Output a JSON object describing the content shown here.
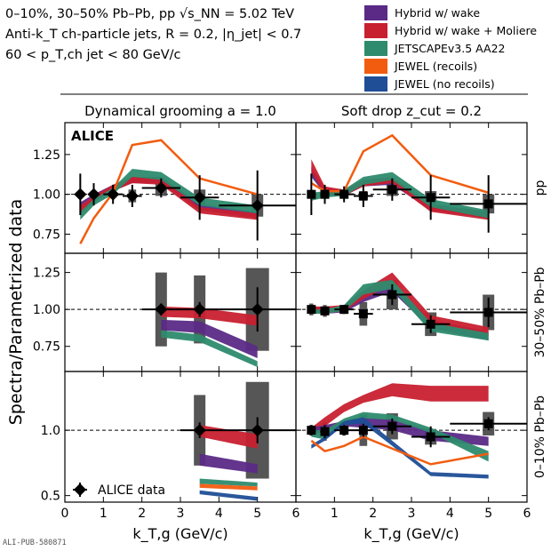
{
  "header": {
    "line1": "0–10%, 30–50% Pb–Pb, pp √s_NN = 5.02 TeV",
    "line2": "Anti-k_T ch-particle jets, R = 0.2, |η_jet| < 0.7",
    "line3": "60 < p_T,ch jet < 80 GeV/c"
  },
  "footer": {
    "pub_id": "ALI-PUB-580871"
  },
  "colors": {
    "hybrid_wake": "#5b2a86",
    "hybrid_moliere": "#c8202f",
    "jetscape": "#2e8b6e",
    "jewel_recoils": "#f25c0f",
    "jewel_norecoils": "#1f4e96",
    "data": "#000000",
    "syst_box": "#444444"
  },
  "chart_data": {
    "type": "line",
    "xlabel": "k_T,g (GeV/c)",
    "ylabel": "Spectra/Parametrized data",
    "xlim": [
      0,
      6
    ],
    "xticks": [
      0,
      1,
      2,
      3,
      4,
      5,
      6
    ],
    "columns": [
      {
        "id": "dyg",
        "title": "Dynamical grooming a = 1.0"
      },
      {
        "id": "sd",
        "title": "Soft drop z_cut = 0.2"
      }
    ],
    "rows": [
      {
        "id": "pp",
        "label": "pp",
        "ylim": [
          0.63,
          1.45
        ],
        "yticks": [
          0.75,
          1.0,
          1.25
        ],
        "ytick_labels": [
          "0.75",
          "1.00",
          "1.25"
        ]
      },
      {
        "id": "pb3050",
        "label": "30–50% Pb–Pb",
        "ylim": [
          0.58,
          1.38
        ],
        "yticks": [
          0.75,
          1.0,
          1.25
        ],
        "ytick_labels": [
          "0.75",
          "1.00",
          "1.25"
        ]
      },
      {
        "id": "pb010",
        "label": "0–10% Pb–Pb",
        "ylim": [
          0.45,
          1.45
        ],
        "yticks": [
          0.5,
          1.0
        ],
        "ytick_labels": [
          "0.5",
          "1.0"
        ]
      }
    ],
    "reference_line": 1.0,
    "legend": [
      {
        "key": "hybrid_wake",
        "label": "Hybrid w/ wake"
      },
      {
        "key": "hybrid_moliere",
        "label": "Hybrid w/ wake + Moliere"
      },
      {
        "key": "jetscape",
        "label": "JETSCAPEv3.5 AA22"
      },
      {
        "key": "jewel_recoils",
        "label": "JEWEL (recoils)"
      },
      {
        "key": "jewel_norecoils",
        "label": "JEWEL (no recoils)"
      }
    ],
    "data_legend": "ALICE data",
    "experiment_label": "ALICE",
    "panels": [
      {
        "row": "pp",
        "col": "dyg",
        "data": [
          {
            "x": 0.4,
            "y": 1.0,
            "xerr": 0.1,
            "stat": 0.13,
            "sys": 0.02,
            "sw": 0.1
          },
          {
            "x": 0.75,
            "y": 1.0,
            "xerr": 0.12,
            "stat": 0.07,
            "sys": 0.02,
            "sw": 0.1
          },
          {
            "x": 1.25,
            "y": 1.0,
            "xerr": 0.25,
            "stat": 0.06,
            "sys": 0.02,
            "sw": 0.1
          },
          {
            "x": 1.75,
            "y": 0.99,
            "xerr": 0.25,
            "stat": 0.07,
            "sys": 0.04,
            "sw": 0.2
          },
          {
            "x": 2.5,
            "y": 1.04,
            "xerr": 0.5,
            "stat": 0.06,
            "sys": 0.05,
            "sw": 0.3
          },
          {
            "x": 3.5,
            "y": 0.98,
            "xerr": 0.5,
            "stat": 0.14,
            "sys": 0.05,
            "sw": 0.3
          },
          {
            "x": 5.0,
            "y": 0.93,
            "xerr": 1.0,
            "stat": 0.22,
            "sys": 0.07,
            "sw": 0.3
          }
        ],
        "bands": [
          {
            "key": "hybrid_wake",
            "x": [
              0.4,
              0.75,
              1.25,
              1.75,
              2.5,
              3.5,
              5.0
            ],
            "lo": [
              0.9,
              0.96,
              1.02,
              1.07,
              1.07,
              0.9,
              0.85
            ],
            "hi": [
              0.95,
              1.0,
              1.06,
              1.11,
              1.11,
              0.94,
              0.89
            ]
          },
          {
            "key": "hybrid_moliere",
            "x": [
              0.4,
              0.75,
              1.25,
              1.75,
              2.5,
              3.5,
              5.0
            ],
            "lo": [
              0.88,
              0.95,
              1.02,
              1.07,
              1.06,
              0.88,
              0.84
            ],
            "hi": [
              0.93,
              0.99,
              1.06,
              1.11,
              1.1,
              0.92,
              0.88
            ]
          },
          {
            "key": "jetscape",
            "x": [
              0.4,
              0.75,
              1.25,
              1.75,
              2.5,
              3.5,
              5.0
            ],
            "lo": [
              0.84,
              0.93,
              1.0,
              1.11,
              1.09,
              0.93,
              0.88
            ],
            "hi": [
              0.89,
              0.97,
              1.04,
              1.16,
              1.14,
              0.98,
              0.93
            ]
          }
        ],
        "lines": [
          {
            "key": "jewel_recoils",
            "x": [
              0.4,
              0.75,
              1.25,
              1.75,
              2.5,
              3.5,
              5.0
            ],
            "y": [
              0.69,
              0.85,
              1.01,
              1.31,
              1.34,
              1.1,
              1.0
            ]
          }
        ]
      },
      {
        "row": "pp",
        "col": "sd",
        "data": [
          {
            "x": 0.4,
            "y": 1.0,
            "xerr": 0.1,
            "stat": 0.13,
            "sys": 0.02,
            "sw": 0.1
          },
          {
            "x": 0.75,
            "y": 1.0,
            "xerr": 0.12,
            "stat": 0.06,
            "sys": 0.02,
            "sw": 0.1
          },
          {
            "x": 1.25,
            "y": 1.0,
            "xerr": 0.25,
            "stat": 0.05,
            "sys": 0.02,
            "sw": 0.1
          },
          {
            "x": 1.75,
            "y": 0.99,
            "xerr": 0.25,
            "stat": 0.07,
            "sys": 0.03,
            "sw": 0.2
          },
          {
            "x": 2.5,
            "y": 1.03,
            "xerr": 0.5,
            "stat": 0.07,
            "sys": 0.04,
            "sw": 0.3
          },
          {
            "x": 3.5,
            "y": 0.98,
            "xerr": 0.5,
            "stat": 0.14,
            "sys": 0.04,
            "sw": 0.3
          },
          {
            "x": 5.0,
            "y": 0.94,
            "xerr": 1.0,
            "stat": 0.18,
            "sys": 0.06,
            "sw": 0.3
          }
        ],
        "bands": [
          {
            "key": "hybrid_wake",
            "x": [
              0.4,
              0.75,
              1.25,
              1.75,
              2.5,
              3.5,
              5.0
            ],
            "lo": [
              1.11,
              1.0,
              0.99,
              1.05,
              1.06,
              0.9,
              0.85
            ],
            "hi": [
              1.17,
              1.04,
              1.03,
              1.09,
              1.1,
              0.94,
              0.89
            ]
          },
          {
            "key": "hybrid_moliere",
            "x": [
              0.4,
              0.75,
              1.25,
              1.75,
              2.5,
              3.5,
              5.0
            ],
            "lo": [
              1.14,
              1.0,
              0.99,
              1.05,
              1.07,
              0.89,
              0.84
            ],
            "hi": [
              1.22,
              1.05,
              1.03,
              1.09,
              1.11,
              0.93,
              0.88
            ]
          },
          {
            "key": "jetscape",
            "x": [
              0.4,
              0.75,
              1.25,
              1.75,
              2.5,
              3.5,
              5.0
            ],
            "lo": [
              0.96,
              0.98,
              0.99,
              1.06,
              1.09,
              0.92,
              0.85
            ],
            "hi": [
              1.01,
              1.02,
              1.03,
              1.11,
              1.14,
              0.97,
              0.9
            ]
          }
        ],
        "lines": [
          {
            "key": "jewel_recoils",
            "x": [
              0.4,
              0.75,
              1.25,
              1.75,
              2.5,
              3.5,
              5.0
            ],
            "y": [
              1.07,
              1.02,
              1.02,
              1.27,
              1.37,
              1.12,
              1.01
            ]
          }
        ]
      },
      {
        "row": "pb3050",
        "col": "dyg",
        "data": [
          {
            "x": 2.5,
            "y": 1.0,
            "xerr": 0.5,
            "stat": 0.04,
            "sys": 0.25,
            "sw": 0.3
          },
          {
            "x": 3.5,
            "y": 1.0,
            "xerr": 0.5,
            "stat": 0.05,
            "sys": 0.23,
            "sw": 0.3
          },
          {
            "x": 5.0,
            "y": 1.0,
            "xerr": 1.0,
            "stat": 0.15,
            "sys": 0.28,
            "sw": 0.6
          }
        ],
        "bands": [
          {
            "key": "hybrid_wake",
            "x": [
              2.5,
              3.5,
              5.0
            ],
            "lo": [
              0.86,
              0.84,
              0.67
            ],
            "hi": [
              0.93,
              0.92,
              0.75
            ]
          },
          {
            "key": "hybrid_moliere",
            "x": [
              2.5,
              3.5,
              5.0
            ],
            "lo": [
              0.95,
              0.94,
              0.89
            ],
            "hi": [
              1.02,
              1.01,
              0.96
            ]
          },
          {
            "key": "jetscape",
            "x": [
              2.5,
              3.5,
              5.0
            ],
            "lo": [
              0.81,
              0.78,
              0.61
            ],
            "hi": [
              0.86,
              0.83,
              0.65
            ]
          }
        ],
        "lines": []
      },
      {
        "row": "pb3050",
        "col": "sd",
        "data": [
          {
            "x": 0.4,
            "y": 1.0,
            "xerr": 0.1,
            "stat": 0.03,
            "sys": 0.04,
            "sw": 0.1
          },
          {
            "x": 0.75,
            "y": 0.99,
            "xerr": 0.12,
            "stat": 0.03,
            "sys": 0.04,
            "sw": 0.1
          },
          {
            "x": 1.25,
            "y": 1.0,
            "xerr": 0.25,
            "stat": 0.03,
            "sys": 0.03,
            "sw": 0.1
          },
          {
            "x": 1.75,
            "y": 0.97,
            "xerr": 0.25,
            "stat": 0.03,
            "sys": 0.08,
            "sw": 0.2
          },
          {
            "x": 2.5,
            "y": 1.1,
            "xerr": 0.5,
            "stat": 0.07,
            "sys": 0.1,
            "sw": 0.3
          },
          {
            "x": 3.5,
            "y": 0.9,
            "xerr": 0.5,
            "stat": 0.06,
            "sys": 0.08,
            "sw": 0.3
          },
          {
            "x": 5.0,
            "y": 0.98,
            "xerr": 1.0,
            "stat": 0.1,
            "sys": 0.12,
            "sw": 0.3
          }
        ],
        "bands": [
          {
            "key": "hybrid_wake",
            "x": [
              0.4,
              0.75,
              1.25,
              1.75,
              2.5,
              3.5,
              5.0
            ],
            "lo": [
              0.98,
              0.97,
              0.98,
              1.05,
              1.12,
              0.87,
              0.79
            ],
            "hi": [
              1.02,
              1.01,
              1.02,
              1.11,
              1.18,
              0.93,
              0.85
            ]
          },
          {
            "key": "hybrid_moliere",
            "x": [
              0.4,
              0.75,
              1.25,
              1.75,
              2.5,
              3.5,
              5.0
            ],
            "lo": [
              0.98,
              0.97,
              0.99,
              1.07,
              1.17,
              0.9,
              0.82
            ],
            "hi": [
              1.02,
              1.02,
              1.03,
              1.13,
              1.25,
              0.96,
              0.88
            ]
          },
          {
            "key": "jetscape",
            "x": [
              0.4,
              0.75,
              1.25,
              1.75,
              2.5,
              3.5,
              5.0
            ],
            "lo": [
              0.97,
              0.97,
              0.99,
              1.1,
              1.14,
              0.85,
              0.79
            ],
            "hi": [
              1.0,
              1.0,
              1.03,
              1.17,
              1.2,
              0.91,
              0.84
            ]
          }
        ],
        "lines": []
      },
      {
        "row": "pb010",
        "col": "dyg",
        "data": [
          {
            "x": 3.5,
            "y": 1.0,
            "xerr": 0.5,
            "stat": 0.06,
            "sys": 0.27,
            "sw": 0.3
          },
          {
            "x": 5.0,
            "y": 1.0,
            "xerr": 1.0,
            "stat": 0.1,
            "sys": 0.37,
            "sw": 0.6
          }
        ],
        "bands": [
          {
            "key": "hybrid_moliere",
            "x": [
              3.5,
              5.0
            ],
            "lo": [
              0.95,
              0.86
            ],
            "hi": [
              1.04,
              0.97
            ]
          },
          {
            "key": "hybrid_wake",
            "x": [
              3.5,
              5.0
            ],
            "lo": [
              0.73,
              0.67
            ],
            "hi": [
              0.82,
              0.74
            ]
          },
          {
            "key": "jetscape",
            "x": [
              3.5,
              5.0
            ],
            "lo": [
              0.59,
              0.57
            ],
            "hi": [
              0.63,
              0.6
            ]
          },
          {
            "key": "jewel_recoils",
            "x": [
              3.5,
              5.0
            ],
            "lo": [
              0.56,
              0.54
            ],
            "hi": [
              0.59,
              0.57
            ]
          },
          {
            "key": "jewel_norecoils",
            "x": [
              3.5,
              5.0
            ],
            "lo": [
              0.51,
              0.46
            ],
            "hi": [
              0.54,
              0.49
            ]
          }
        ],
        "lines": []
      },
      {
        "row": "pb010",
        "col": "sd",
        "data": [
          {
            "x": 0.4,
            "y": 1.0,
            "xerr": 0.1,
            "stat": 0.04,
            "sys": 0.04,
            "sw": 0.1
          },
          {
            "x": 0.75,
            "y": 0.99,
            "xerr": 0.12,
            "stat": 0.05,
            "sys": 0.07,
            "sw": 0.1
          },
          {
            "x": 1.25,
            "y": 1.0,
            "xerr": 0.25,
            "stat": 0.04,
            "sys": 0.04,
            "sw": 0.1
          },
          {
            "x": 1.75,
            "y": 1.0,
            "xerr": 0.25,
            "stat": 0.05,
            "sys": 0.12,
            "sw": 0.2
          },
          {
            "x": 2.5,
            "y": 1.03,
            "xerr": 0.5,
            "stat": 0.06,
            "sys": 0.1,
            "sw": 0.3
          },
          {
            "x": 3.5,
            "y": 0.95,
            "xerr": 0.5,
            "stat": 0.08,
            "sys": 0.06,
            "sw": 0.3
          },
          {
            "x": 5.0,
            "y": 1.05,
            "xerr": 1.0,
            "stat": 0.05,
            "sys": 0.09,
            "sw": 0.3
          }
        ],
        "bands": [
          {
            "key": "hybrid_moliere",
            "x": [
              0.4,
              0.75,
              1.25,
              1.75,
              2.5,
              3.5,
              5.0
            ],
            "lo": [
              0.97,
              1.03,
              1.14,
              1.21,
              1.26,
              1.22,
              1.22
            ],
            "hi": [
              1.02,
              1.1,
              1.2,
              1.27,
              1.36,
              1.34,
              1.34
            ]
          },
          {
            "key": "hybrid_wake",
            "x": [
              0.4,
              0.75,
              1.25,
              1.75,
              2.5,
              3.5,
              5.0
            ],
            "lo": [
              0.97,
              0.99,
              1.03,
              1.02,
              1.0,
              0.92,
              0.88
            ],
            "hi": [
              1.02,
              1.04,
              1.07,
              1.1,
              1.08,
              1.0,
              0.95
            ]
          },
          {
            "key": "jetscape",
            "x": [
              0.4,
              0.75,
              1.25,
              1.75,
              2.5,
              3.5,
              5.0
            ],
            "lo": [
              0.95,
              0.93,
              1.04,
              1.09,
              1.08,
              0.98,
              0.76
            ],
            "hi": [
              1.0,
              1.0,
              1.09,
              1.14,
              1.12,
              1.02,
              0.84
            ]
          },
          {
            "key": "jewel_norecoils",
            "x": [
              0.4,
              0.75,
              1.25,
              1.75,
              2.5,
              3.5,
              5.0
            ],
            "lo": [
              0.86,
              0.92,
              1.04,
              1.05,
              0.88,
              0.65,
              0.63
            ],
            "hi": [
              0.89,
              0.95,
              1.07,
              1.1,
              0.92,
              0.68,
              0.66
            ]
          }
        ],
        "lines": [
          {
            "key": "jewel_recoils",
            "x": [
              0.4,
              0.75,
              1.25,
              1.75,
              2.5,
              3.5,
              5.0
            ],
            "y": [
              0.92,
              0.84,
              0.88,
              0.95,
              0.86,
              0.74,
              0.82
            ]
          }
        ]
      }
    ]
  }
}
